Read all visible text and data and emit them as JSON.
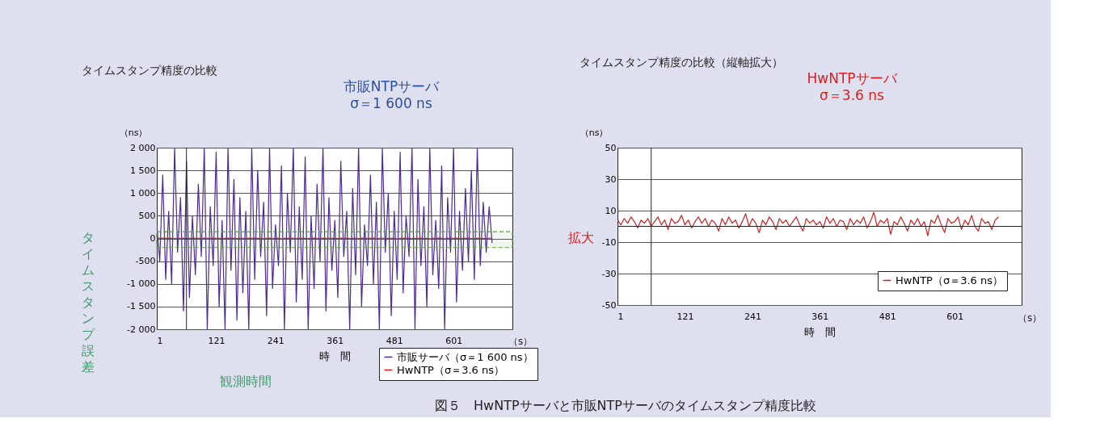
{
  "chart_data": [
    {
      "type": "line",
      "title": "タイムスタンプ精度の比較",
      "xlabel": "時　間",
      "ylabel": "（ns）",
      "xlim": [
        1,
        720
      ],
      "xticks": [
        1,
        121,
        241,
        361,
        481,
        601
      ],
      "ylim": [
        -2000,
        2000
      ],
      "yticks": [
        {
          "value": 2000,
          "label": "2 000"
        },
        {
          "value": 1500,
          "label": "1 500"
        },
        {
          "value": 1000,
          "label": "1 000"
        },
        500,
        0,
        -500,
        {
          "value": -1000,
          "label": "-1 000"
        },
        {
          "value": -1500,
          "label": "-1 500"
        },
        {
          "value": -2000,
          "label": "-2 000"
        }
      ],
      "grid": "y",
      "legend": "bottom right",
      "line_style": "solid",
      "x": [
        1,
        7,
        13,
        19,
        25,
        31,
        37,
        43,
        49,
        55,
        61,
        67,
        73,
        79,
        85,
        91,
        97,
        103,
        109,
        115,
        121,
        127,
        133,
        139,
        145,
        151,
        157,
        163,
        169,
        175,
        181,
        187,
        193,
        199,
        205,
        211,
        217,
        223,
        229,
        235,
        241,
        247,
        253,
        259,
        265,
        271,
        277,
        283,
        289,
        295,
        301,
        307,
        313,
        319,
        325,
        331,
        337,
        343,
        349,
        355,
        361,
        367,
        373,
        379,
        385,
        391,
        397,
        403,
        409,
        415,
        421,
        427,
        433,
        439,
        445,
        451,
        457,
        463,
        469,
        475,
        481,
        487,
        493,
        499,
        505,
        511,
        517,
        523,
        529,
        535,
        541,
        547,
        553,
        559,
        565,
        571,
        577,
        583,
        589,
        595,
        601,
        607,
        613,
        619,
        625,
        631,
        637,
        643,
        649,
        655,
        661,
        667,
        673,
        679
      ],
      "series": [
        {
          "name": "市販サーバ（σ＝1 600 ns）",
          "color": "#4b2a9a",
          "values": [
            300,
            -500,
            1400,
            -900,
            600,
            -1000,
            2000,
            -300,
            900,
            -1600,
            1700,
            -1300,
            500,
            -800,
            1200,
            -400,
            2000,
            -2000,
            700,
            -600,
            1900,
            -1500,
            400,
            -2000,
            2000,
            -700,
            1300,
            -1800,
            900,
            -1200,
            600,
            -2000,
            2000,
            -900,
            1500,
            -400,
            800,
            -1700,
            2000,
            -1100,
            300,
            -600,
            1600,
            -2000,
            1000,
            -300,
            2000,
            -1400,
            700,
            -900,
            1800,
            -2000,
            500,
            -1100,
            1200,
            -500,
            2000,
            -1600,
            900,
            -700,
            400,
            -1300,
            1700,
            -400,
            600,
            -2000,
            1100,
            -800,
            2000,
            -1500,
            300,
            -600,
            1400,
            -1000,
            800,
            -2000,
            2000,
            -300,
            1000,
            -1700,
            600,
            -900,
            1900,
            -1200,
            500,
            -400,
            2000,
            -2000,
            1300,
            -600,
            700,
            -1500,
            2000,
            -800,
            400,
            -1100,
            1600,
            -2000,
            900,
            -300,
            2000,
            -1400,
            600,
            -700,
            1100,
            -500,
            1500,
            -900,
            2000,
            -600,
            800,
            -300,
            700,
            -100
          ]
        },
        {
          "name": "HwNTP（σ＝3.6 ns）",
          "color": "#d42020",
          "values": [
            4,
            1,
            5,
            2,
            6,
            3,
            -1,
            4,
            2,
            5,
            0,
            3,
            6,
            1,
            4,
            -2,
            5,
            2,
            3,
            7,
            1,
            4,
            -1,
            3,
            6,
            2,
            5,
            0,
            4,
            2,
            -3,
            5,
            1,
            6,
            2,
            4,
            -1,
            3,
            8,
            0,
            5,
            2,
            -4,
            4,
            1,
            6,
            3,
            -2,
            5,
            2,
            4,
            0,
            3,
            6,
            1,
            -3,
            5,
            2,
            4,
            1,
            3,
            -1,
            6,
            2,
            5,
            0,
            4,
            3,
            -2,
            5,
            1,
            4,
            2,
            6,
            -1,
            3,
            9,
            0,
            4,
            2,
            5,
            -5,
            3,
            1,
            6,
            2,
            -3,
            4,
            1,
            5,
            0,
            3,
            -6,
            4,
            2,
            7,
            1,
            -4,
            5,
            2,
            3,
            6,
            -2,
            4,
            1,
            7,
            0,
            -3,
            5,
            2,
            3,
            -2,
            4,
            6
          ]
        }
      ],
      "ref_lines": [
        {
          "axis": "x",
          "value": 61,
          "color": "#222222"
        }
      ],
      "bands": [
        {
          "axis": "y",
          "from": -200,
          "to": 150,
          "color": "#5a9e3a"
        }
      ],
      "annotations": [
        "市販NTPサーバ\nσ＝1 600 ns",
        "タイムスタンプ誤差",
        "観測時間",
        "拡大",
        "（s）",
        "図５　HwNTPサーバと市販NTPサーバのタイムスタンプ精度比較"
      ]
    },
    {
      "type": "line",
      "title": "タイムスタンプ精度の比較（縦軸拡大）",
      "xlabel": "時　間",
      "ylabel": "（ns）",
      "xlim": [
        1,
        720
      ],
      "xticks": [
        1,
        121,
        241,
        361,
        481,
        601
      ],
      "ylim": [
        -50,
        50
      ],
      "yticks": [
        50,
        30,
        10,
        -10,
        -30,
        -50
      ],
      "grid": "y",
      "legend": "bottom right",
      "line_style": "solid",
      "x": [
        1,
        7,
        13,
        19,
        25,
        31,
        37,
        43,
        49,
        55,
        61,
        67,
        73,
        79,
        85,
        91,
        97,
        103,
        109,
        115,
        121,
        127,
        133,
        139,
        145,
        151,
        157,
        163,
        169,
        175,
        181,
        187,
        193,
        199,
        205,
        211,
        217,
        223,
        229,
        235,
        241,
        247,
        253,
        259,
        265,
        271,
        277,
        283,
        289,
        295,
        301,
        307,
        313,
        319,
        325,
        331,
        337,
        343,
        349,
        355,
        361,
        367,
        373,
        379,
        385,
        391,
        397,
        403,
        409,
        415,
        421,
        427,
        433,
        439,
        445,
        451,
        457,
        463,
        469,
        475,
        481,
        487,
        493,
        499,
        505,
        511,
        517,
        523,
        529,
        535,
        541,
        547,
        553,
        559,
        565,
        571,
        577,
        583,
        589,
        595,
        601,
        607,
        613,
        619,
        625,
        631,
        637,
        643,
        649,
        655,
        661,
        667,
        673,
        679
      ],
      "series": [
        {
          "name": "HwNTP（σ＝3.6 ns）",
          "color": "#d42020",
          "values": [
            4,
            1,
            5,
            2,
            6,
            3,
            -1,
            4,
            2,
            5,
            0,
            3,
            6,
            1,
            4,
            -2,
            5,
            2,
            3,
            7,
            1,
            4,
            -1,
            3,
            6,
            2,
            5,
            0,
            4,
            2,
            -3,
            5,
            1,
            6,
            2,
            4,
            -1,
            3,
            8,
            0,
            5,
            2,
            -4,
            4,
            1,
            6,
            3,
            -2,
            5,
            2,
            4,
            0,
            3,
            6,
            1,
            -3,
            5,
            2,
            4,
            1,
            3,
            -1,
            6,
            2,
            5,
            0,
            4,
            3,
            -2,
            5,
            1,
            4,
            2,
            6,
            -1,
            3,
            9,
            0,
            4,
            2,
            5,
            -5,
            3,
            1,
            6,
            2,
            -3,
            4,
            1,
            5,
            0,
            3,
            -6,
            4,
            2,
            7,
            1,
            -4,
            5,
            2,
            3,
            6,
            -2,
            4,
            1,
            7,
            0,
            -3,
            5,
            2,
            3,
            -2,
            4,
            6
          ]
        }
      ],
      "ref_lines": [
        {
          "axis": "x",
          "value": 61,
          "color": "#222222"
        },
        {
          "axis": "y",
          "value": 0,
          "color": "#222222"
        }
      ],
      "annotations": [
        "HwNTPサーバ\nσ＝3.6 ns",
        "（s）"
      ]
    }
  ]
}
